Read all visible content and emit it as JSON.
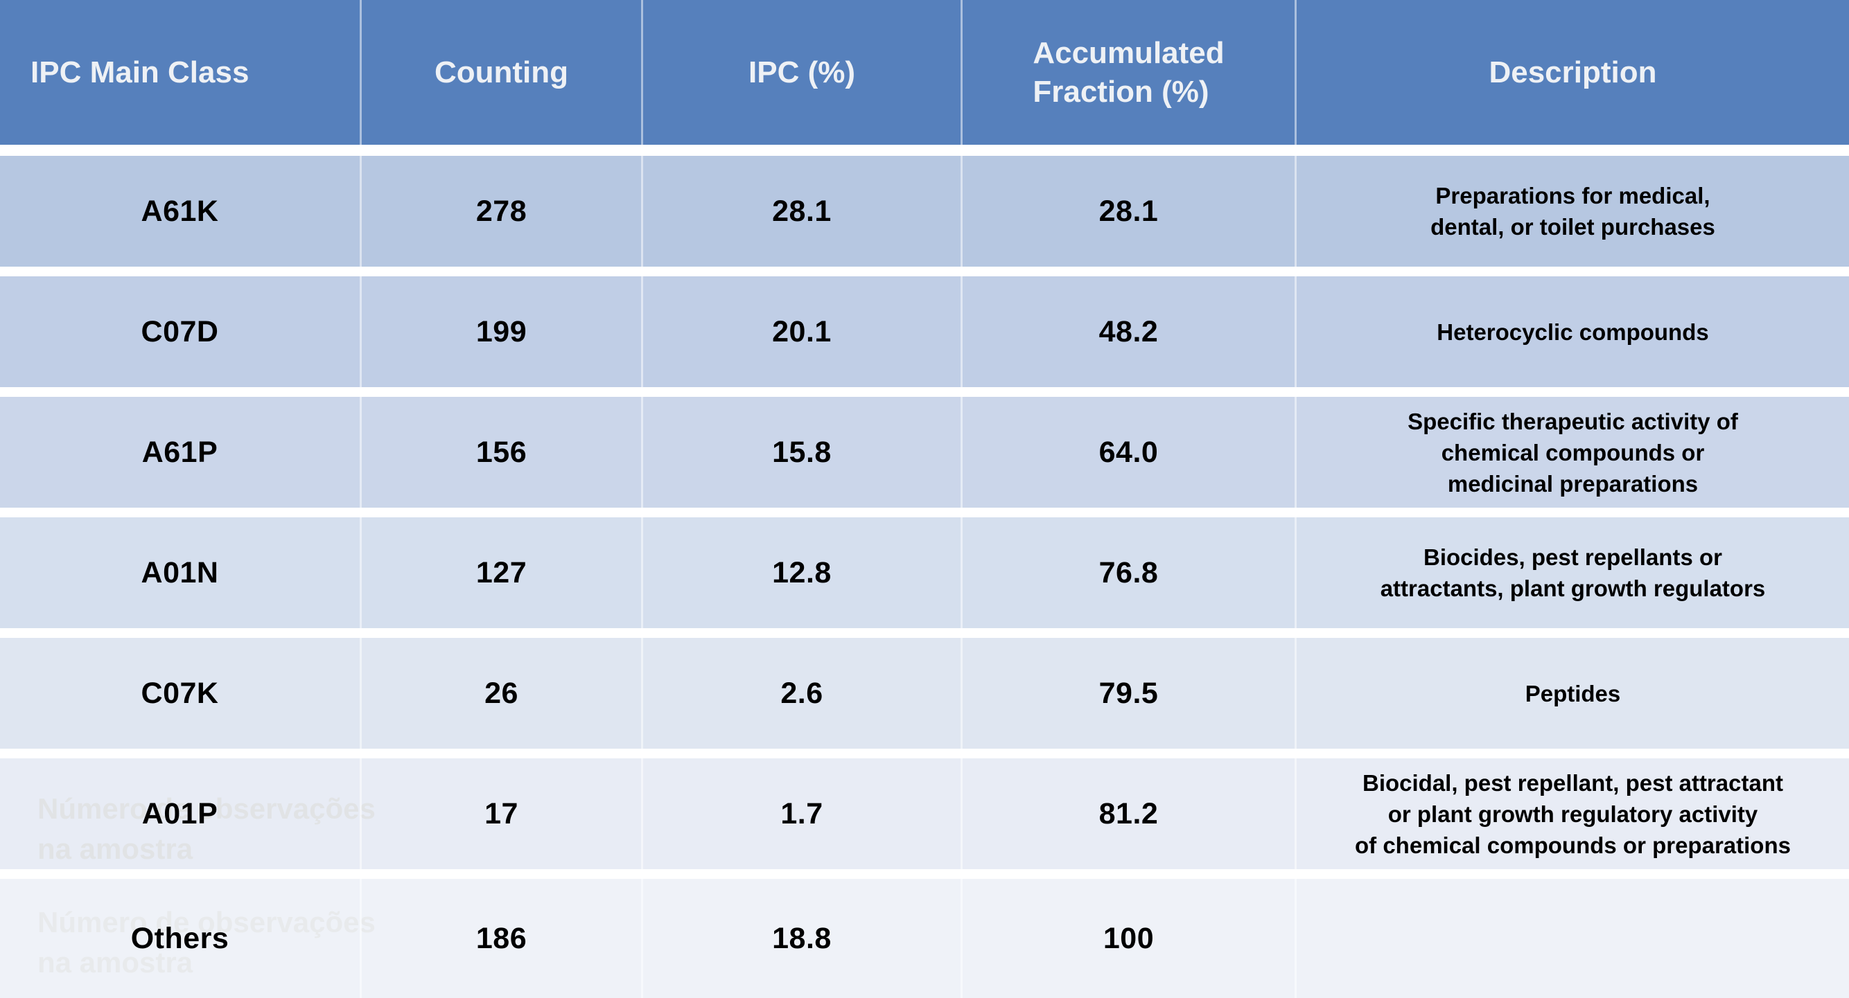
{
  "chart_data": {
    "type": "table",
    "title": "",
    "columns": [
      "IPC Main Class",
      "Counting",
      "IPC (%)",
      "Accumulated Fraction (%)",
      "Description"
    ],
    "rows": [
      [
        "A61K",
        278,
        28.1,
        28.1,
        "Preparations for medical, dental, or toilet purchases"
      ],
      [
        "C07D",
        199,
        20.1,
        48.2,
        "Heterocyclic compounds"
      ],
      [
        "A61P",
        156,
        15.8,
        64.0,
        "Specific therapeutic activity of chemical compounds or medicinal preparations"
      ],
      [
        "A01N",
        127,
        12.8,
        76.8,
        "Biocides, pest repellants or attractants, plant growth regulators"
      ],
      [
        "C07K",
        26,
        2.6,
        79.5,
        "Peptides"
      ],
      [
        "A01P",
        17,
        1.7,
        81.2,
        "Biocidal, pest repellant, pest attractant or plant growth regulatory activity of chemical compounds or preparations"
      ],
      [
        "Others",
        186,
        18.8,
        100,
        ""
      ]
    ]
  },
  "header": {
    "ipc_main_class": "IPC Main Class",
    "counting": "Counting",
    "ipc_pct": "IPC (%)",
    "accumulated_fraction": "Accumulated\nFraction (%)",
    "description": "Description"
  },
  "rows": [
    {
      "code": "A61K",
      "counting": "278",
      "ipc_pct": "28.1",
      "acc_fraction": "28.1",
      "description": "Preparations for medical,\ndental, or toilet purchases"
    },
    {
      "code": "C07D",
      "counting": "199",
      "ipc_pct": "20.1",
      "acc_fraction": "48.2",
      "description": "Heterocyclic compounds"
    },
    {
      "code": "A61P",
      "counting": "156",
      "ipc_pct": "15.8",
      "acc_fraction": "64.0",
      "description": "Specific therapeutic activity of\nchemical compounds or\nmedicinal preparations"
    },
    {
      "code": "A01N",
      "counting": "127",
      "ipc_pct": "12.8",
      "acc_fraction": "76.8",
      "description": "Biocides, pest repellants or\nattractants, plant growth regulators"
    },
    {
      "code": "C07K",
      "counting": "26",
      "ipc_pct": "2.6",
      "acc_fraction": "79.5",
      "description": "Peptides"
    },
    {
      "code": "A01P",
      "counting": "17",
      "ipc_pct": "1.7",
      "acc_fraction": "81.2",
      "description": "Biocidal, pest repellant, pest attractant\nor plant growth regulatory activity\nof chemical compounds or preparations"
    },
    {
      "code": "Others",
      "counting": "186",
      "ipc_pct": "18.8",
      "acc_fraction": "100",
      "description": ""
    }
  ],
  "watermark": {
    "line1": "Número de observações",
    "line2": "na amostra"
  },
  "colors": {
    "header_bg": "#5680BC",
    "header_text": "#EEF1F5",
    "body_text": "#000000",
    "divider": "#FFFFFF",
    "row_backgrounds": [
      "#B6C7E1",
      "#C0CEE6",
      "#CBD6EA",
      "#D5DFEE",
      "#DFE6F1",
      "#E8ECF5",
      "#EFF2F8"
    ],
    "watermark_colors": [
      "#E1E3E5",
      "#E8EAEC"
    ]
  }
}
